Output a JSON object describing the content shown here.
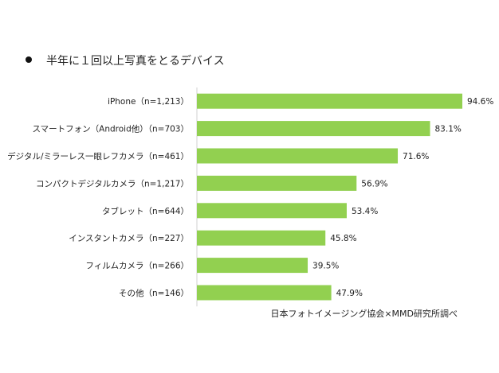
{
  "chart_data": {
    "type": "bar",
    "orientation": "horizontal",
    "title": "半年に１回以上写真をとるデバイス",
    "categories": [
      "iPhone（n=1,213）",
      "スマートフォン（Android他）（n=703）",
      "デジタル/ミラーレス一眼レフカメラ（n=461）",
      "コンパクトデジタルカメラ（n=1,217）",
      "タブレット（n=644）",
      "インスタントカメラ（n=227）",
      "フィルムカメラ（n=266）",
      "その他（n=146）"
    ],
    "values": [
      94.6,
      83.1,
      71.6,
      56.9,
      53.4,
      45.8,
      39.5,
      47.9
    ],
    "data_labels": [
      "94.6%",
      "83.1%",
      "71.6%",
      "56.9%",
      "53.4%",
      "45.8%",
      "39.5%",
      "47.9%"
    ],
    "xlim": [
      0,
      100
    ],
    "grid": false,
    "bar_color": "#92d050",
    "source": "日本フォトイメージング協会×MMD研究所調べ"
  }
}
